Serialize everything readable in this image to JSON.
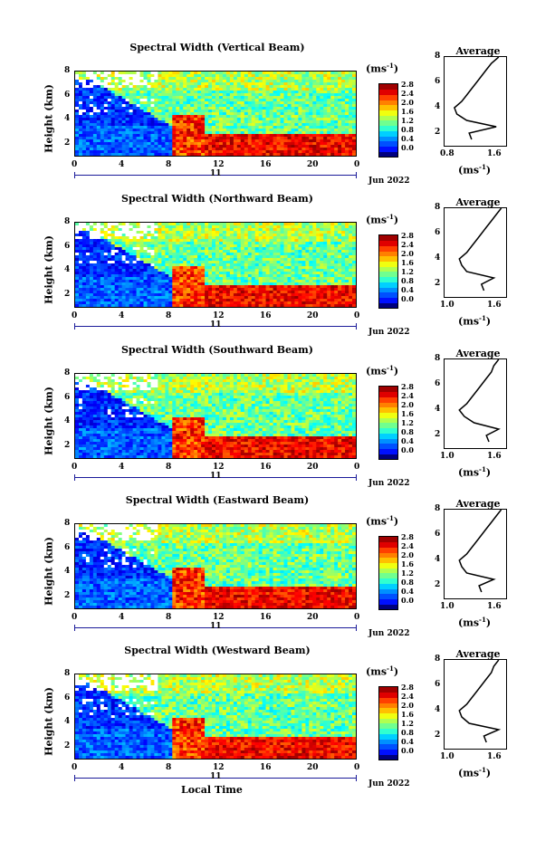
{
  "panels": [
    {
      "title": "Spectral Width (Vertical Beam)",
      "avg_xticks": [
        "0.8",
        "1.6"
      ]
    },
    {
      "title": "Spectral Width (Northward Beam)",
      "avg_xticks": [
        "1.0",
        "1.6"
      ]
    },
    {
      "title": "Spectral Width (Southward Beam)",
      "avg_xticks": [
        "1.0",
        "1.6"
      ]
    },
    {
      "title": "Spectral Width (Eastward Beam)",
      "avg_xticks": [
        "1.0",
        "1.6"
      ]
    },
    {
      "title": "Spectral Width (Westward Beam)",
      "avg_xticks": [
        "1.0",
        "1.6"
      ]
    }
  ],
  "ylabel": "Height (km)",
  "yticks": [
    "2",
    "4",
    "6",
    "8"
  ],
  "xticks": [
    "0",
    "4",
    "8",
    "12",
    "16",
    "20",
    "0"
  ],
  "day_label": "11",
  "month_label": "Jun 2022",
  "xlabel": "Local Time",
  "colorbar": {
    "unit_base": "(ms",
    "unit_exp": "-1",
    "unit_close": ")",
    "ticks": [
      "2.8",
      "2.4",
      "2.0",
      "1.6",
      "1.2",
      "0.8",
      "0.4",
      "0.0"
    ]
  },
  "avg": {
    "title": "Average",
    "yticks": [
      "2",
      "4",
      "6",
      "8"
    ],
    "unit_base": "(ms",
    "unit_exp": "-1",
    "unit_close": ")"
  },
  "chart_data": {
    "type": "heatmap",
    "x_axis": "Local Time (h)",
    "xlim": [
      0,
      24
    ],
    "ylim_km": [
      1,
      8
    ],
    "zlim": [
      0.0,
      2.8
    ],
    "colormap": "jet",
    "average_profiles": [
      {
        "beam": "Vertical",
        "height_km": [
          1.5,
          2,
          2.5,
          3,
          3.5,
          4,
          4.5,
          5,
          5.5,
          6,
          6.5,
          7,
          7.5,
          8
        ],
        "width": [
          1.15,
          1.1,
          1.65,
          1.05,
          0.85,
          0.8,
          0.95,
          1.05,
          1.15,
          1.25,
          1.35,
          1.45,
          1.55,
          1.7
        ]
      },
      {
        "beam": "Northward",
        "height_km": [
          1.5,
          2,
          2.5,
          3,
          3.5,
          4,
          4.5,
          5,
          5.5,
          6,
          6.5,
          7,
          7.5,
          8
        ],
        "width": [
          1.4,
          1.35,
          1.6,
          1.05,
          0.95,
          0.9,
          1.05,
          1.15,
          1.25,
          1.35,
          1.45,
          1.55,
          1.65,
          1.75
        ]
      },
      {
        "beam": "Southward",
        "height_km": [
          1.5,
          2,
          2.5,
          3,
          3.5,
          4,
          4.5,
          5,
          5.5,
          6,
          6.5,
          7,
          7.5,
          8
        ],
        "width": [
          1.5,
          1.45,
          1.7,
          1.2,
          1.0,
          0.9,
          1.05,
          1.15,
          1.25,
          1.35,
          1.45,
          1.55,
          1.6,
          1.7
        ]
      },
      {
        "beam": "Eastward",
        "height_km": [
          1.5,
          2,
          2.5,
          3,
          3.5,
          4,
          4.5,
          5,
          5.5,
          6,
          6.5,
          7,
          7.5,
          8
        ],
        "width": [
          1.35,
          1.3,
          1.6,
          1.05,
          0.95,
          0.9,
          1.05,
          1.15,
          1.25,
          1.35,
          1.45,
          1.55,
          1.65,
          1.75
        ]
      },
      {
        "beam": "Westward",
        "height_km": [
          1.5,
          2,
          2.5,
          3,
          3.5,
          4,
          4.5,
          5,
          5.5,
          6,
          6.5,
          7,
          7.5,
          8
        ],
        "width": [
          1.45,
          1.4,
          1.7,
          1.1,
          0.95,
          0.9,
          1.05,
          1.15,
          1.25,
          1.35,
          1.45,
          1.55,
          1.6,
          1.7
        ]
      }
    ]
  }
}
